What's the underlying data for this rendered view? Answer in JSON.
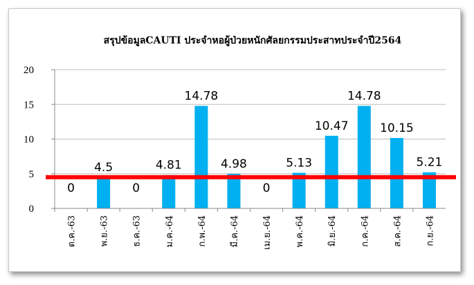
{
  "chart_data": {
    "type": "bar",
    "title": "สรุปข้อมูลCAUTI ประจำหอผู้ป่วยหนักศัลยกรรมประสาทประจำปี2564",
    "categories": [
      "ต.ค.-63",
      "พ.ย.-63",
      "ธ.ค.-63",
      "ม.ค.-64",
      "ก.พ.-64",
      "มี.ค.-64",
      "เม.ย.-64",
      "พ.ค.-64",
      "มิ.ย.-64",
      "ก.ค.-64",
      "ส.ค.-64",
      "ก.ย.-64"
    ],
    "values": [
      0,
      4.5,
      0,
      4.81,
      14.78,
      4.98,
      0,
      5.13,
      10.47,
      14.78,
      10.15,
      5.21
    ],
    "data_labels": [
      "0",
      "4.5",
      "0",
      "4.81",
      "14.78",
      "4.98",
      "0",
      "5.13",
      "10.47",
      "14.78",
      "10.15",
      "5.21"
    ],
    "ylim": [
      0,
      20
    ],
    "yticks": [
      "0",
      "5",
      "10",
      "15",
      "20"
    ],
    "threshold": 4.5,
    "grid": true,
    "legend": "none",
    "colors": {
      "bar": "#00b0f0",
      "threshold": "#ff0000",
      "grid": "#bdbdbd",
      "axis": "#888888"
    }
  }
}
